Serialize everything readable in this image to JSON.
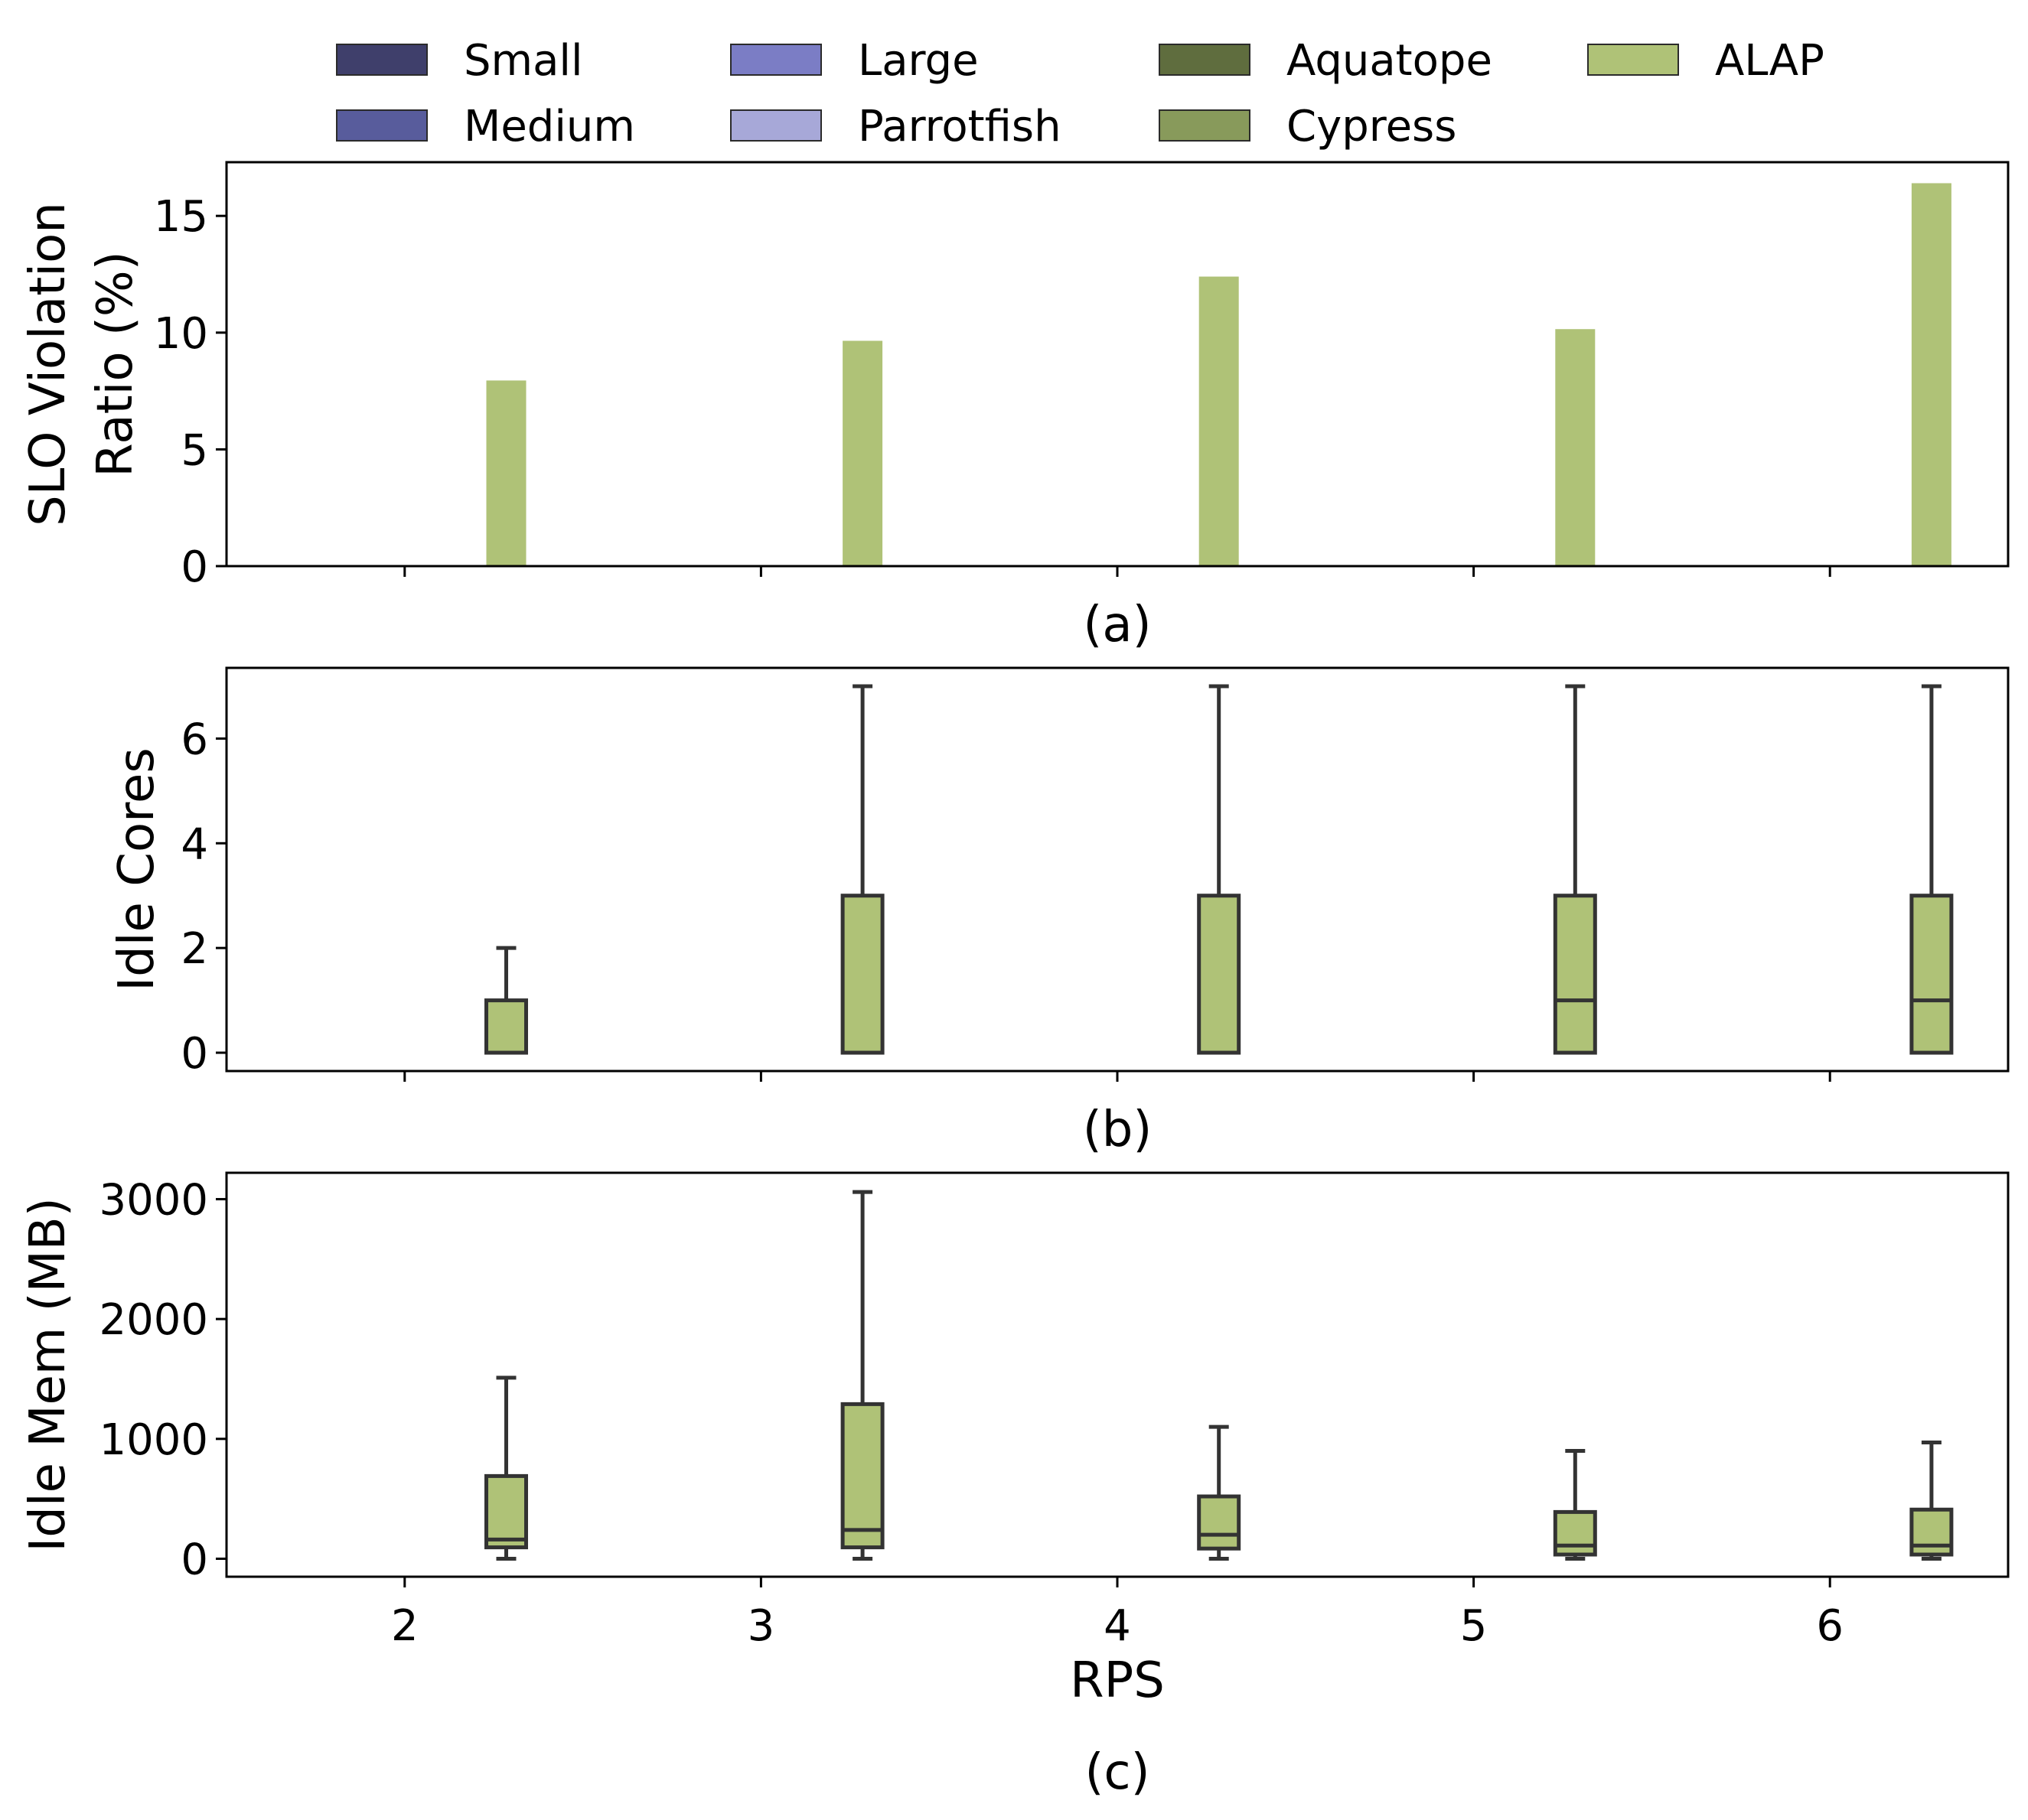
{
  "legend": {
    "items": [
      {
        "name": "Small",
        "color": "#3f3f6b"
      },
      {
        "name": "Medium",
        "color": "#585c9c"
      },
      {
        "name": "Large",
        "color": "#7b7dc5"
      },
      {
        "name": "Parrotfish",
        "color": "#a7a8d8"
      },
      {
        "name": "Aquatope",
        "color": "#5f6d3e"
      },
      {
        "name": "Cypress",
        "color": "#889a5b"
      },
      {
        "name": "ALAP",
        "color": "#afc277"
      }
    ]
  },
  "colors": {
    "alap_fill": "#afc277",
    "box_edge": "#333333",
    "axis": "#000000"
  },
  "chart_data": [
    {
      "type": "bar",
      "panel_label": "(a)",
      "xlabel": "",
      "ylabel_lines": [
        "SLO Violation",
        "Ratio (%)"
      ],
      "categories": [
        2,
        3,
        4,
        5,
        6
      ],
      "xlim": [
        1.5,
        6.5
      ],
      "ylim": [
        0,
        17.3
      ],
      "yticks": [
        0,
        5,
        10,
        15
      ],
      "series": [
        {
          "name": "ALAP",
          "values": [
            7.95,
            9.65,
            12.4,
            10.15,
            16.4
          ]
        }
      ]
    },
    {
      "type": "box",
      "panel_label": "(b)",
      "xlabel": "",
      "ylabel_lines": [
        "Idle Cores"
      ],
      "categories": [
        2,
        3,
        4,
        5,
        6
      ],
      "xlim": [
        1.5,
        6.5
      ],
      "ylim": [
        -0.35,
        7.35
      ],
      "yticks": [
        0,
        2,
        4,
        6
      ],
      "series": [
        {
          "name": "ALAP",
          "boxes": [
            {
              "whisker_low": 0,
              "q1": 0,
              "median": 0,
              "q3": 1,
              "whisker_high": 2
            },
            {
              "whisker_low": 0,
              "q1": 0,
              "median": 0,
              "q3": 3,
              "whisker_high": 7
            },
            {
              "whisker_low": 0,
              "q1": 0,
              "median": 0,
              "q3": 3,
              "whisker_high": 7
            },
            {
              "whisker_low": 0,
              "q1": 0,
              "median": 1,
              "q3": 3,
              "whisker_high": 7
            },
            {
              "whisker_low": 0,
              "q1": 0,
              "median": 1,
              "q3": 3,
              "whisker_high": 7
            }
          ]
        }
      ]
    },
    {
      "type": "box",
      "panel_label": "(c)",
      "xlabel": "RPS",
      "ylabel_lines": [
        "Idle Mem (MB)"
      ],
      "categories": [
        2,
        3,
        4,
        5,
        6
      ],
      "xlim": [
        1.5,
        6.5
      ],
      "ylim": [
        -150,
        3220
      ],
      "yticks": [
        0,
        1000,
        2000,
        3000
      ],
      "series": [
        {
          "name": "ALAP",
          "boxes": [
            {
              "whisker_low": 0,
              "q1": 95,
              "median": 160,
              "q3": 690,
              "whisker_high": 1510
            },
            {
              "whisker_low": 0,
              "q1": 95,
              "median": 240,
              "q3": 1290,
              "whisker_high": 3060
            },
            {
              "whisker_low": 0,
              "q1": 85,
              "median": 200,
              "q3": 520,
              "whisker_high": 1100
            },
            {
              "whisker_low": 0,
              "q1": 35,
              "median": 110,
              "q3": 390,
              "whisker_high": 900
            },
            {
              "whisker_low": 0,
              "q1": 35,
              "median": 110,
              "q3": 410,
              "whisker_high": 970
            }
          ]
        }
      ]
    }
  ]
}
